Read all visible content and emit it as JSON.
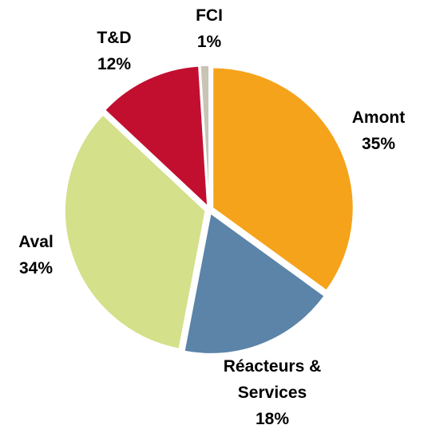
{
  "chart_data": {
    "type": "pie",
    "categories": [
      "Amont",
      "Réacteurs & Services",
      "Aval",
      "T&D",
      "FCI"
    ],
    "values": [
      35,
      18,
      34,
      12,
      1
    ],
    "value_labels": [
      "35%",
      "18%",
      "34%",
      "12%",
      "1%"
    ],
    "colors": [
      "#f5a31a",
      "#5b84a8",
      "#d4e08a",
      "#c20f30",
      "#c9c4b3"
    ]
  }
}
